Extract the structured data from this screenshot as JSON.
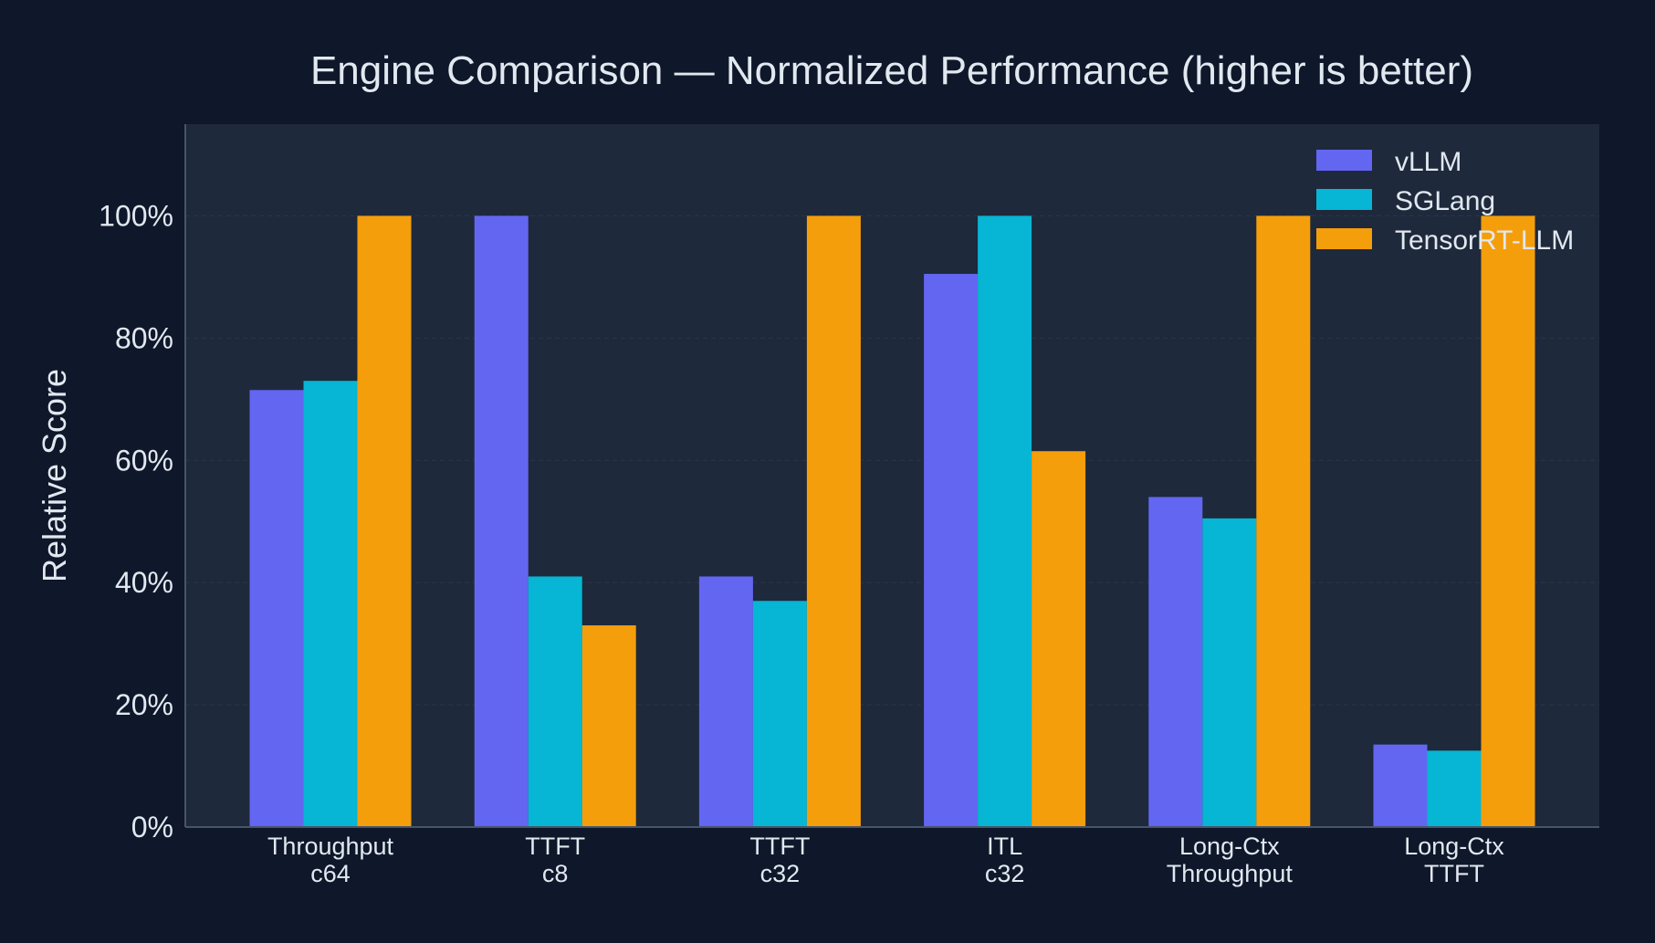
{
  "chart_data": {
    "type": "bar",
    "title": "Engine Comparison — Normalized Performance (higher is better)",
    "xlabel": "",
    "ylabel": "Relative Score",
    "ylim": [
      0,
      1.15
    ],
    "y_ticks": [
      0,
      0.2,
      0.4,
      0.6,
      0.8,
      1.0
    ],
    "y_tick_labels": [
      "0%",
      "20%",
      "40%",
      "60%",
      "80%",
      "100%"
    ],
    "categories": [
      [
        "Throughput",
        "c64"
      ],
      [
        "TTFT",
        "c8"
      ],
      [
        "TTFT",
        "c32"
      ],
      [
        "ITL",
        "c32"
      ],
      [
        "Long-Ctx",
        "Throughput"
      ],
      [
        "Long-Ctx",
        "TTFT"
      ]
    ],
    "series": [
      {
        "name": "vLLM",
        "color": "#6366f1",
        "values": [
          0.715,
          1.0,
          0.41,
          0.905,
          0.54,
          0.135
        ]
      },
      {
        "name": "SGLang",
        "color": "#06b6d4",
        "values": [
          0.73,
          0.41,
          0.37,
          1.0,
          0.505,
          0.125
        ]
      },
      {
        "name": "TensorRT-LLM",
        "color": "#f59e0b",
        "values": [
          1.0,
          0.33,
          1.0,
          0.615,
          1.0,
          1.0
        ]
      }
    ],
    "grid": true,
    "legend_position": "top-right",
    "colors": {
      "background": "#0f172a",
      "plot_background": "#1e293b",
      "text": "#e2e8f0",
      "grid": "#334155",
      "axis": "#475569"
    }
  }
}
